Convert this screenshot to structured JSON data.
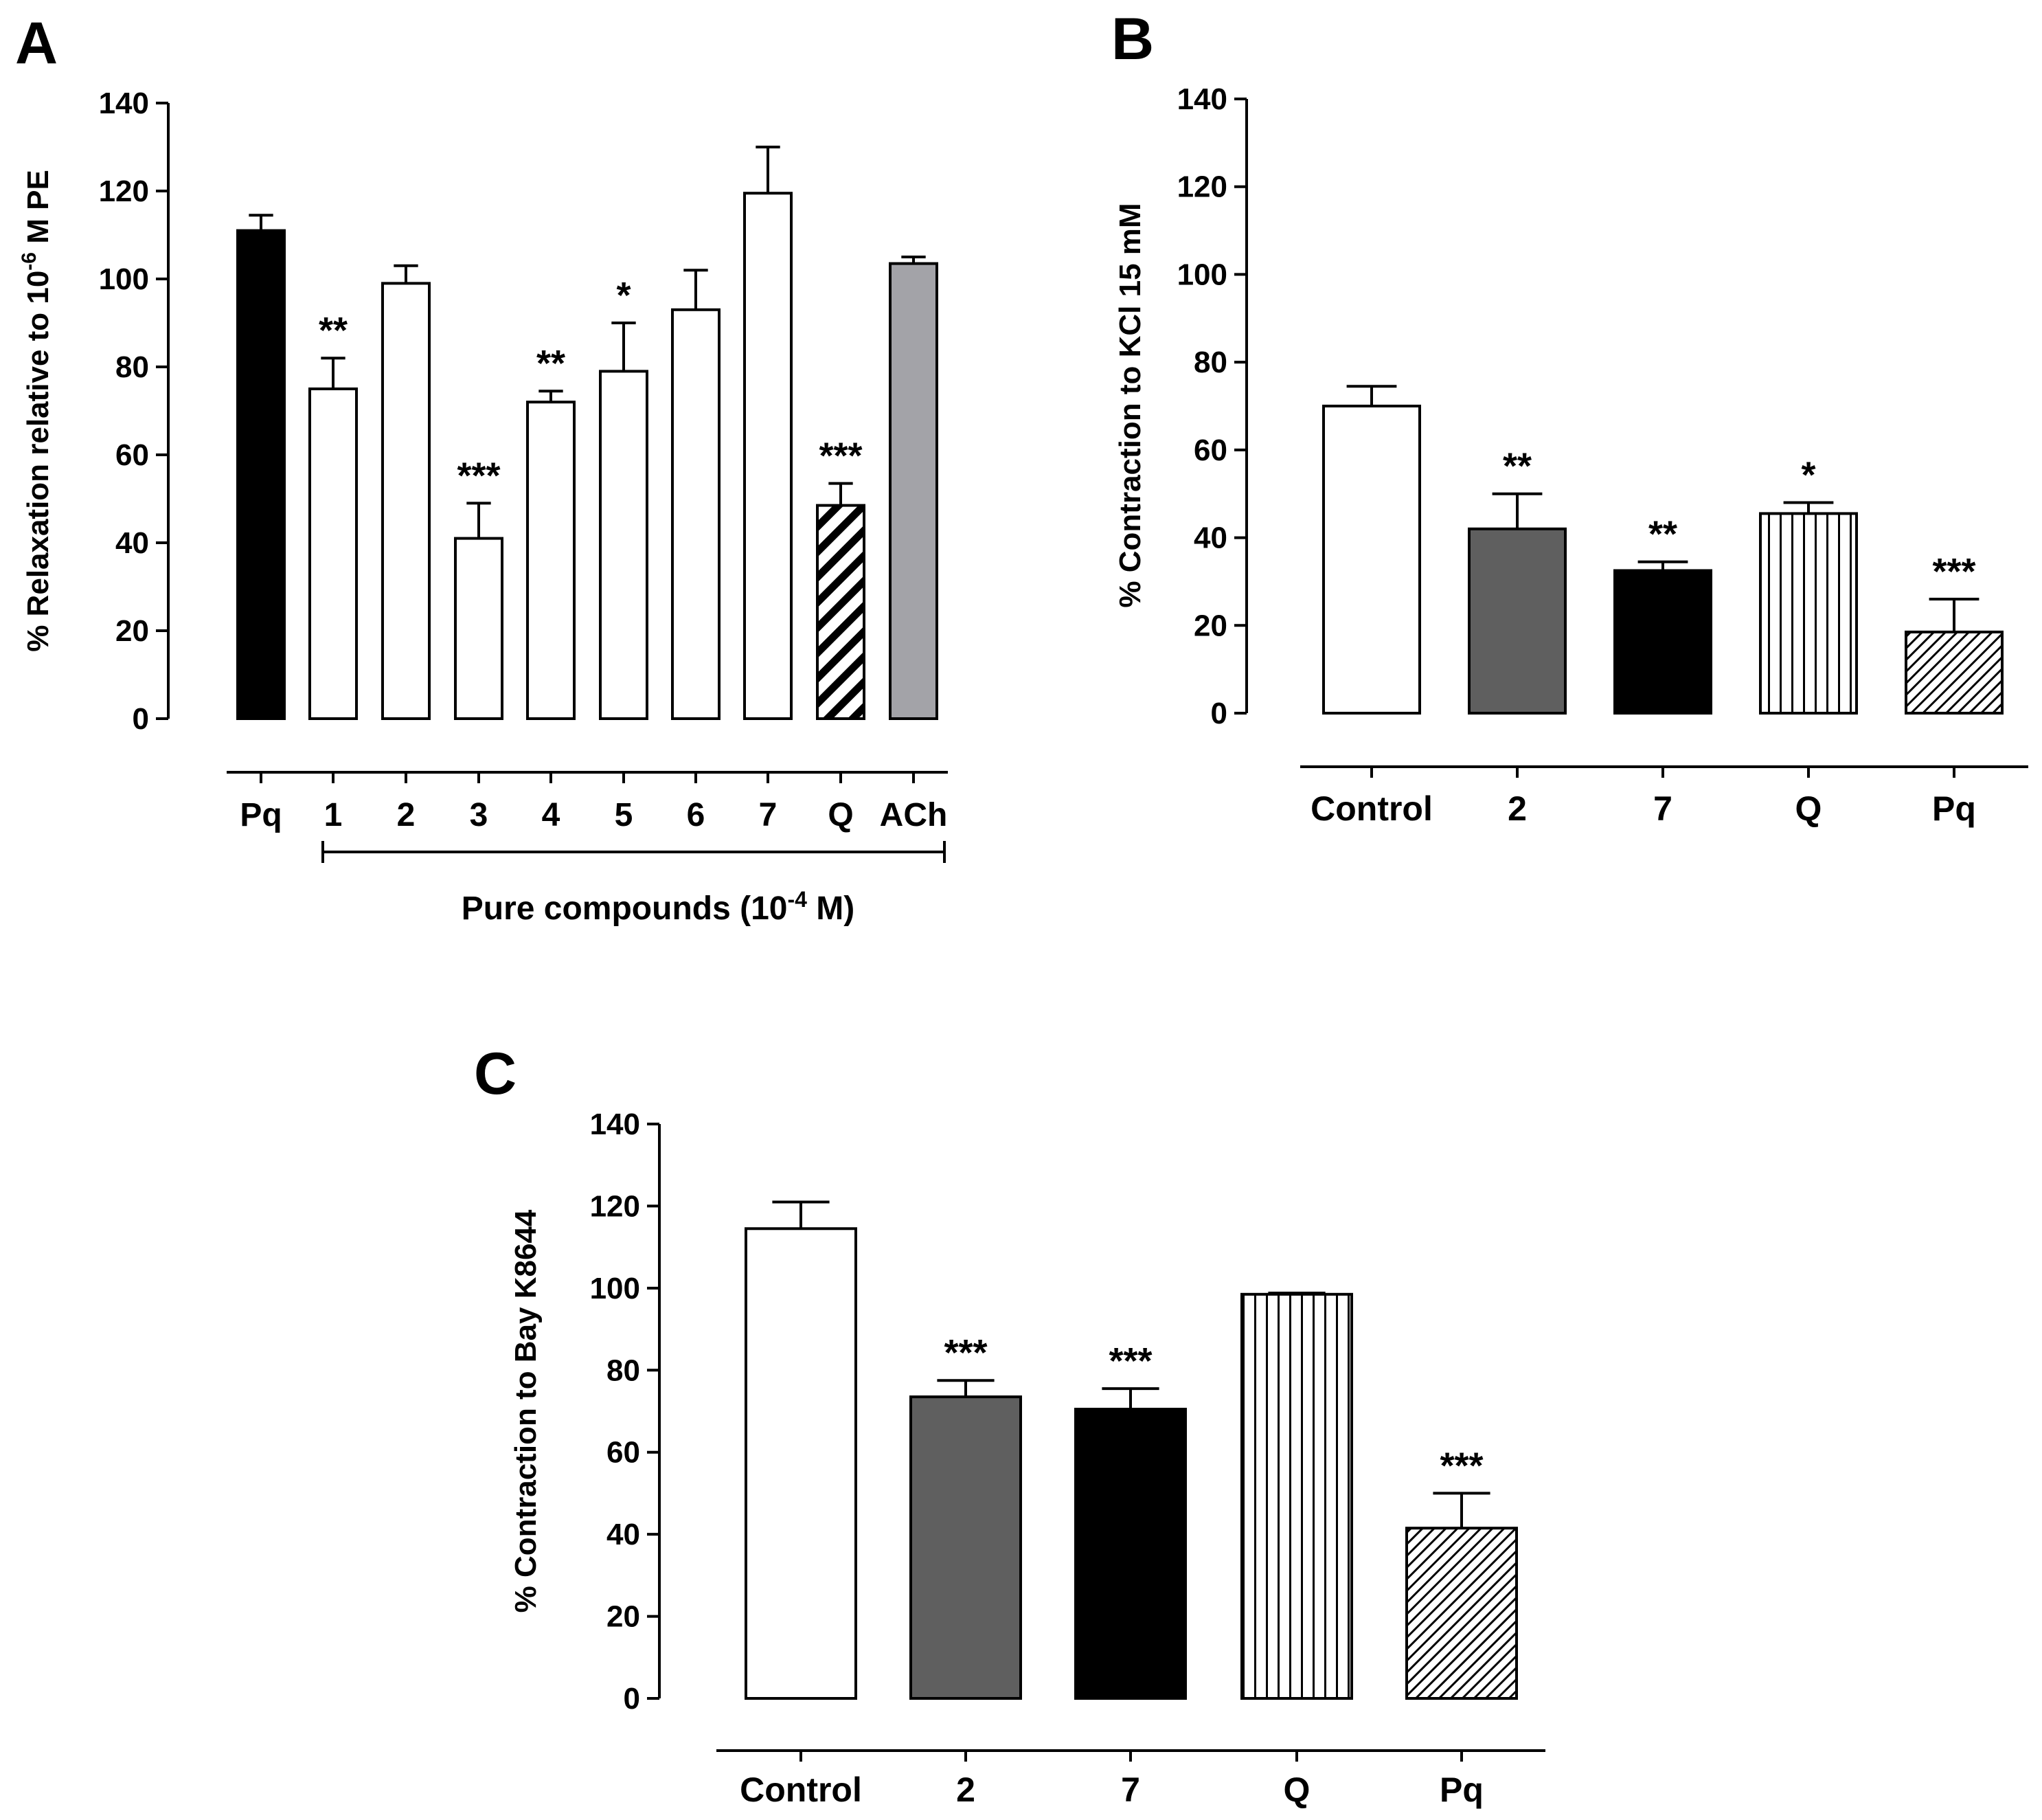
{
  "chart_data": [
    {
      "panel": "A",
      "type": "bar",
      "ylabel_main": "% Relaxation relative to 10",
      "ylabel_sup": "-6",
      "ylabel_tail": " M PE",
      "xlabel_main": "Pure compounds (10",
      "xlabel_sup": "-4",
      "xlabel_tail": " M)",
      "ylim": [
        0,
        140
      ],
      "yticks": [
        "0",
        "20",
        "40",
        "60",
        "80",
        "100",
        "120",
        "140"
      ],
      "categories": [
        "Pq",
        "1",
        "2",
        "3",
        "4",
        "5",
        "6",
        "7",
        "Q",
        "ACh"
      ],
      "values": [
        111,
        75,
        99,
        41,
        72,
        79,
        93,
        119.5,
        48.5,
        103.5
      ],
      "errors": [
        3.5,
        7,
        4,
        8,
        2.5,
        11,
        9,
        10.5,
        5,
        1.5
      ],
      "significance": [
        "",
        "**",
        "",
        "***",
        "**",
        "*",
        "",
        "",
        "***",
        ""
      ],
      "fills": [
        "black",
        "white",
        "white",
        "white",
        "white",
        "white",
        "white",
        "white",
        "hatch",
        "gray"
      ]
    },
    {
      "panel": "B",
      "type": "bar",
      "ylabel": "% Contraction to KCl 15 mM",
      "ylim": [
        0,
        140
      ],
      "yticks": [
        "0",
        "20",
        "40",
        "60",
        "80",
        "100",
        "120",
        "140"
      ],
      "categories": [
        "Control",
        "2",
        "7",
        "Q",
        "Pq"
      ],
      "values": [
        70,
        42,
        32.5,
        45.5,
        18.5
      ],
      "errors": [
        4.5,
        8,
        2,
        2.5,
        7.5
      ],
      "significance": [
        "",
        "**",
        "**",
        "*",
        "***"
      ],
      "fills": [
        "white",
        "darkgray",
        "black",
        "vstripe",
        "hatch"
      ]
    },
    {
      "panel": "C",
      "type": "bar",
      "ylabel": "% Contraction to Bay K8644",
      "ylim": [
        0,
        140
      ],
      "yticks": [
        "0",
        "20",
        "40",
        "60",
        "80",
        "100",
        "120",
        "140"
      ],
      "categories": [
        "Control",
        "2",
        "7",
        "Q",
        "Pq"
      ],
      "values": [
        114.5,
        73.5,
        70.5,
        98.5,
        41.5
      ],
      "errors": [
        6.5,
        4,
        5,
        0.3,
        8.5
      ],
      "significance": [
        "",
        "***",
        "***",
        "",
        "***"
      ],
      "fills": [
        "white",
        "darkgray",
        "black",
        "vstripe",
        "hatch"
      ]
    }
  ]
}
